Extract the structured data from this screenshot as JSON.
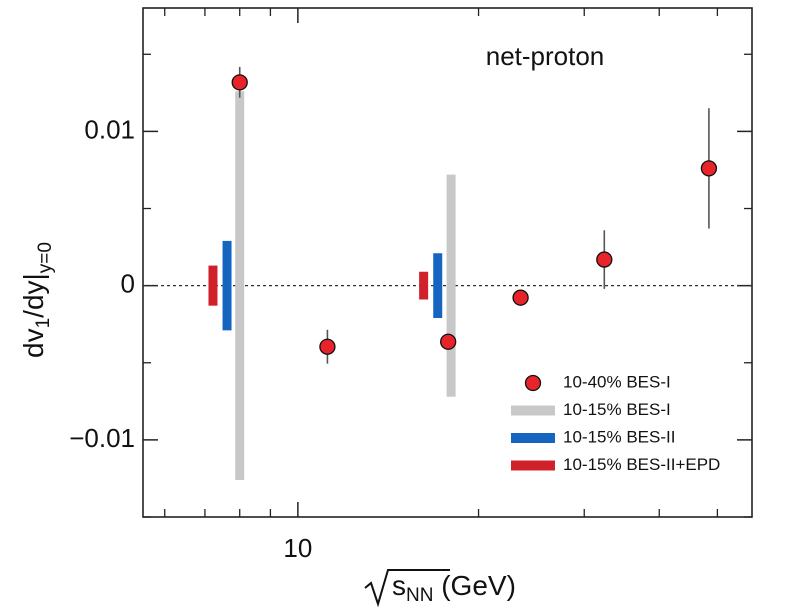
{
  "chart_data": {
    "type": "scatter",
    "annotation": "net-proton",
    "xlabel_parts": [
      "s",
      "NN",
      " (GeV)"
    ],
    "ylabel_parts": [
      "dv",
      "1",
      "/dy|",
      "y=0"
    ],
    "xscale": "log",
    "xlim": [
      5.52,
      57.1
    ],
    "xticks": [
      10
    ],
    "xminor": [
      6,
      7,
      8,
      9,
      20,
      30,
      40,
      50
    ],
    "ylim": [
      -0.015,
      0.018
    ],
    "yticks": [
      {
        "value": -0.01,
        "label": "−0.01"
      },
      0,
      0.01
    ],
    "yminor": [
      -0.015,
      -0.005,
      0.005,
      0.015
    ],
    "legend": "lower right",
    "series": [
      {
        "name": "10-40% BES-I",
        "color": "#e8242a",
        "marker": "circle",
        "x": [
          8.0,
          11.2,
          17.8,
          23.5,
          32.4,
          48.4
        ],
        "values": [
          0.01318,
          -0.00396,
          -0.00364,
          -0.00078,
          0.00169,
          0.0076
        ],
        "errors": [
          0.001,
          0.0011,
          0.0004,
          0.0005,
          0.0019,
          0.0039
        ]
      },
      {
        "name": "10-15% BES-I",
        "color": "#c8c8c8",
        "marker": "band",
        "x": [
          8.0,
          18.0
        ],
        "values": [
          0,
          0
        ],
        "errors": [
          0.0126,
          0.0072
        ]
      },
      {
        "name": "10-15% BES-II",
        "color": "#1565c0",
        "marker": "band",
        "x": [
          7.62,
          17.1
        ],
        "values": [
          0,
          0
        ],
        "errors": [
          0.0029,
          0.0021
        ]
      },
      {
        "name": "10-15% BES-II+EPD",
        "color": "#d0202a",
        "marker": "band",
        "x": [
          7.22,
          16.2
        ],
        "values": [
          0,
          0
        ],
        "errors": [
          0.0013,
          0.0009
        ]
      }
    ]
  }
}
